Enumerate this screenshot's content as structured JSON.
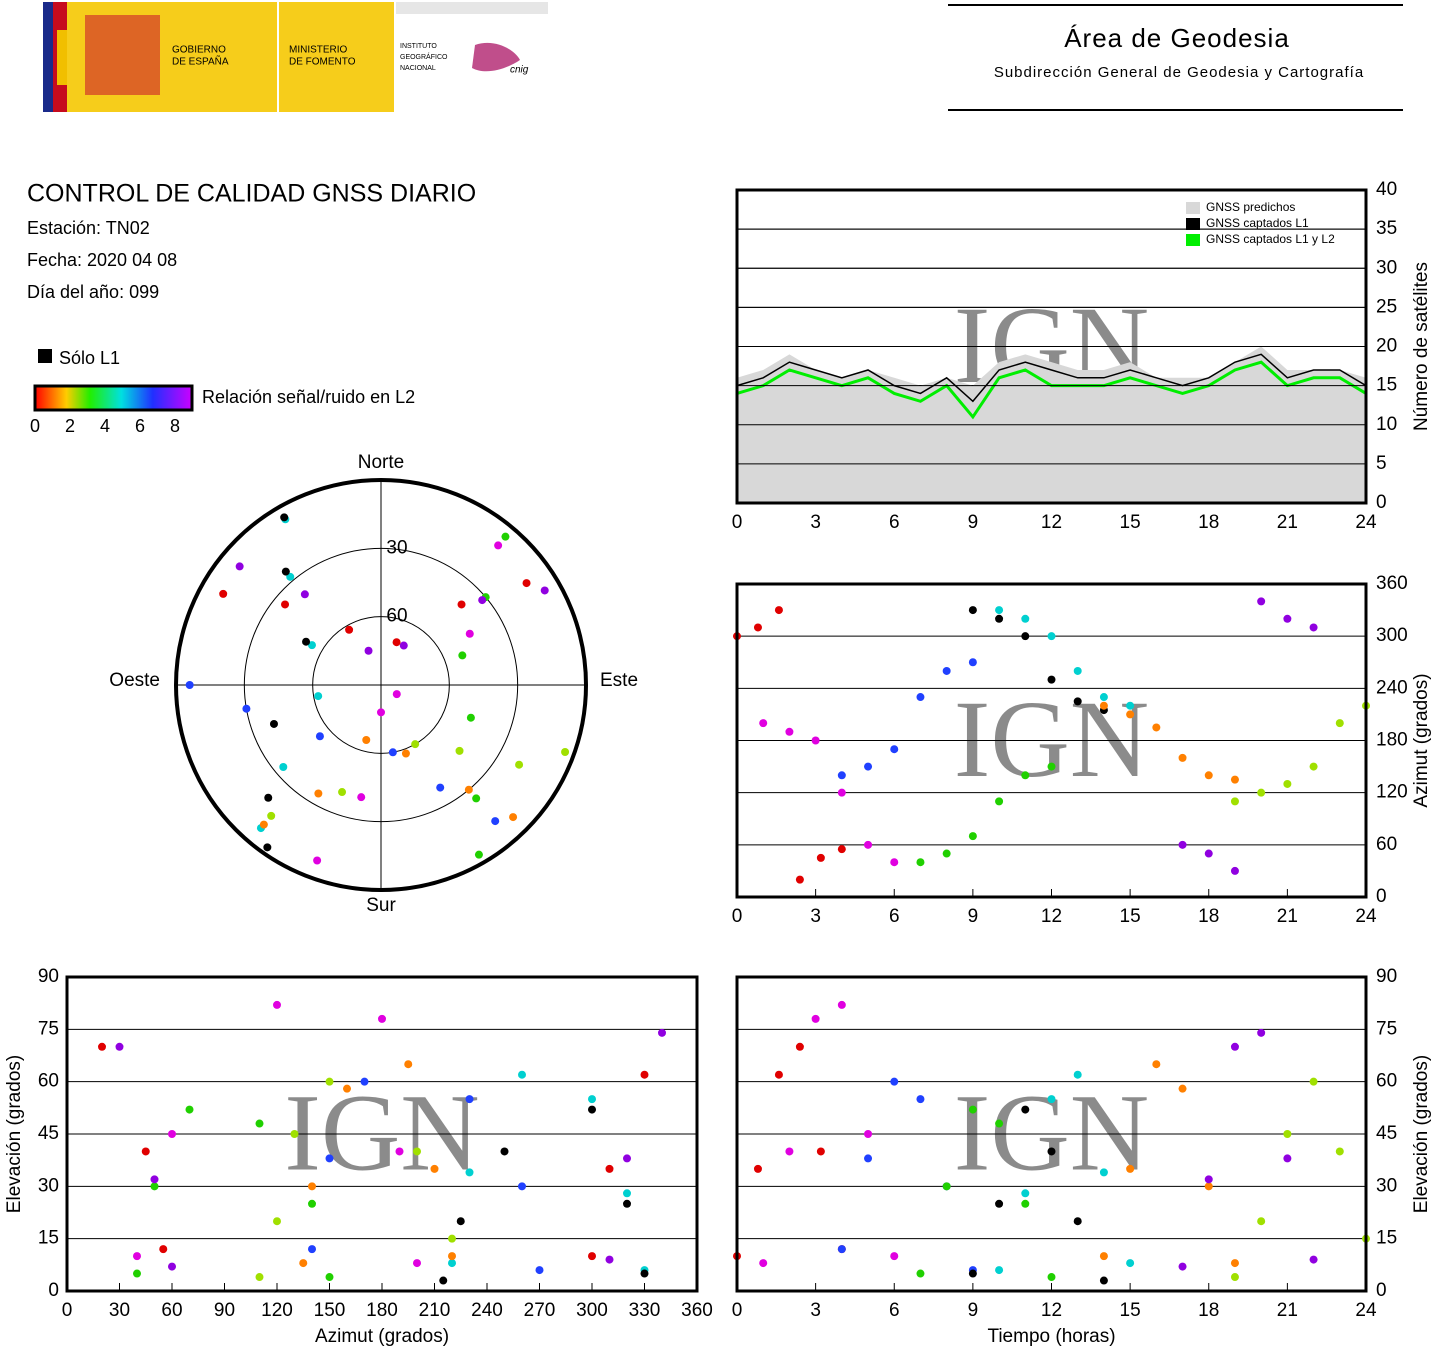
{
  "header": {
    "gov": [
      "GOBIERNO",
      "DE ESPAÑA"
    ],
    "ministry": [
      "MINISTERIO",
      "DE FOMENTO"
    ],
    "institute": [
      "INSTITUTO",
      "GEOGRÁFICO",
      "NACIONAL"
    ],
    "cnig": "cnig",
    "area": "Área de Geodesia",
    "subdir": "Subdirección General de Geodesia y Cartografía"
  },
  "report": {
    "title": "CONTROL DE CALIDAD GNSS DIARIO",
    "station": "Estación: TN02",
    "date": "Fecha: 2020 04 08",
    "doy": "Día del año: 099"
  },
  "legend": {
    "l1_only": "Sólo L1",
    "snr_label": "Relación señal/ruido en L2",
    "snr_ticks": [
      0,
      2,
      4,
      6,
      8
    ]
  },
  "chart_data": [
    {
      "type": "area",
      "watermark": "IGN",
      "y_label": "Número de satélites",
      "xlim": [
        0,
        24
      ],
      "ylim": [
        0,
        40
      ],
      "xticks": [
        0,
        3,
        6,
        9,
        12,
        15,
        18,
        21,
        24
      ],
      "yticks": [
        0,
        5,
        10,
        15,
        20,
        25,
        30,
        35,
        40
      ],
      "grid": true,
      "legend": "upper right",
      "x": [
        0,
        1,
        2,
        3,
        4,
        5,
        6,
        7,
        8,
        9,
        10,
        11,
        12,
        13,
        14,
        15,
        16,
        17,
        18,
        19,
        20,
        21,
        22,
        23,
        24
      ],
      "series": [
        {
          "name": "GNSS predichos",
          "color": "#d8d8d8",
          "fill": true,
          "values": [
            16,
            17,
            19,
            17,
            16,
            17,
            16,
            15,
            16,
            15,
            18,
            19,
            18,
            17,
            17,
            18,
            16,
            16,
            16,
            18,
            20,
            17,
            17,
            17,
            16
          ]
        },
        {
          "name": "GNSS captados L1",
          "color": "#000000",
          "values": [
            15,
            16,
            18,
            17,
            16,
            17,
            15,
            14,
            16,
            13,
            17,
            18,
            17,
            16,
            16,
            17,
            16,
            15,
            16,
            18,
            19,
            16,
            17,
            17,
            15
          ]
        },
        {
          "name": "GNSS captados L1 y L2",
          "color": "#00ee00",
          "values": [
            14,
            15,
            17,
            16,
            15,
            16,
            14,
            13,
            15,
            11,
            16,
            17,
            15,
            15,
            15,
            16,
            15,
            14,
            15,
            17,
            18,
            15,
            16,
            16,
            14
          ]
        }
      ]
    },
    {
      "type": "polar",
      "directions": [
        "Norte",
        "Este",
        "Sur",
        "Oeste"
      ],
      "rlim": [
        90,
        0
      ],
      "rticks": [
        30,
        60
      ],
      "series": [
        {
          "color": "#e00000",
          "x": [
            300,
            310,
            330,
            20,
            45,
            55
          ],
          "values": [
            10,
            35,
            62,
            70,
            40,
            12
          ]
        },
        {
          "color": "#e000e0",
          "x": [
            200,
            190,
            180,
            120,
            60,
            40
          ],
          "values": [
            8,
            40,
            78,
            82,
            45,
            10
          ]
        },
        {
          "color": "#2040ff",
          "x": [
            140,
            150,
            170,
            230,
            260,
            270
          ],
          "values": [
            12,
            38,
            60,
            55,
            30,
            6
          ]
        },
        {
          "color": "#20d000",
          "x": [
            40,
            50,
            70,
            110,
            140,
            150
          ],
          "values": [
            5,
            30,
            52,
            48,
            25,
            4
          ]
        },
        {
          "color": "#00d0d0",
          "x": [
            330,
            320,
            300,
            260,
            230,
            220
          ],
          "values": [
            6,
            28,
            55,
            62,
            34,
            8
          ]
        },
        {
          "color": "#000000",
          "x": [
            330,
            320,
            300,
            250,
            225,
            215
          ],
          "values": [
            5,
            25,
            52,
            40,
            20,
            3
          ]
        },
        {
          "color": "#ff8000",
          "x": [
            220,
            210,
            195,
            160,
            140,
            135
          ],
          "values": [
            10,
            35,
            65,
            58,
            30,
            8
          ]
        },
        {
          "color": "#9000e0",
          "x": [
            60,
            50,
            30,
            340,
            320,
            310
          ],
          "values": [
            7,
            32,
            70,
            74,
            38,
            9
          ]
        },
        {
          "color": "#a0e000",
          "x": [
            110,
            120,
            130,
            150,
            200,
            220
          ],
          "values": [
            4,
            20,
            45,
            60,
            40,
            15
          ]
        }
      ]
    },
    {
      "type": "scatter",
      "watermark": "IGN",
      "y_label": "Azimut (grados)",
      "xlim": [
        0,
        24
      ],
      "ylim": [
        0,
        360
      ],
      "xticks": [
        0,
        3,
        6,
        9,
        12,
        15,
        18,
        21,
        24
      ],
      "yticks": [
        0,
        60,
        120,
        180,
        240,
        300,
        360
      ],
      "grid": true,
      "series": [
        {
          "color": "#e00000",
          "x": [
            0,
            0.8,
            1.6,
            2.4,
            3.2,
            4
          ],
          "values": [
            300,
            310,
            330,
            20,
            45,
            55
          ]
        },
        {
          "color": "#e000e0",
          "x": [
            1,
            2,
            3,
            4,
            5,
            6
          ],
          "values": [
            200,
            190,
            180,
            120,
            60,
            40
          ]
        },
        {
          "color": "#2040ff",
          "x": [
            4,
            5,
            6,
            7,
            8,
            9
          ],
          "values": [
            140,
            150,
            170,
            230,
            260,
            270
          ]
        },
        {
          "color": "#20d000",
          "x": [
            7,
            8,
            9,
            10,
            11,
            12
          ],
          "values": [
            40,
            50,
            70,
            110,
            140,
            150
          ]
        },
        {
          "color": "#00d0d0",
          "x": [
            10,
            11,
            12,
            13,
            14,
            15
          ],
          "values": [
            330,
            320,
            300,
            260,
            230,
            220
          ]
        },
        {
          "color": "#000000",
          "x": [
            9,
            10,
            11,
            12,
            13,
            14
          ],
          "values": [
            330,
            320,
            300,
            250,
            225,
            215
          ]
        },
        {
          "color": "#ff8000",
          "x": [
            14,
            15,
            16,
            17,
            18,
            19
          ],
          "values": [
            220,
            210,
            195,
            160,
            140,
            135
          ]
        },
        {
          "color": "#9000e0",
          "x": [
            17,
            18,
            19,
            20,
            21,
            22
          ],
          "values": [
            60,
            50,
            30,
            340,
            320,
            310
          ]
        },
        {
          "color": "#a0e000",
          "x": [
            19,
            20,
            21,
            22,
            23,
            24
          ],
          "values": [
            110,
            120,
            130,
            150,
            200,
            220
          ]
        }
      ]
    },
    {
      "type": "scatter",
      "watermark": "IGN",
      "x_label": "Azimut (grados)",
      "y_label": "Elevación (grados)",
      "xlim": [
        0,
        360
      ],
      "ylim": [
        0,
        90
      ],
      "xticks": [
        0,
        30,
        60,
        90,
        120,
        150,
        180,
        210,
        240,
        270,
        300,
        330,
        360
      ],
      "yticks": [
        0,
        15,
        30,
        45,
        60,
        75,
        90
      ],
      "grid": true,
      "series": [
        {
          "color": "#e00000",
          "x": [
            300,
            310,
            330,
            20,
            45,
            55
          ],
          "values": [
            10,
            35,
            62,
            70,
            40,
            12
          ]
        },
        {
          "color": "#e000e0",
          "x": [
            200,
            190,
            180,
            120,
            60,
            40
          ],
          "values": [
            8,
            40,
            78,
            82,
            45,
            10
          ]
        },
        {
          "color": "#2040ff",
          "x": [
            140,
            150,
            170,
            230,
            260,
            270
          ],
          "values": [
            12,
            38,
            60,
            55,
            30,
            6
          ]
        },
        {
          "color": "#20d000",
          "x": [
            40,
            50,
            70,
            110,
            140,
            150
          ],
          "values": [
            5,
            30,
            52,
            48,
            25,
            4
          ]
        },
        {
          "color": "#00d0d0",
          "x": [
            330,
            320,
            300,
            260,
            230,
            220
          ],
          "values": [
            6,
            28,
            55,
            62,
            34,
            8
          ]
        },
        {
          "color": "#000000",
          "x": [
            330,
            320,
            300,
            250,
            225,
            215
          ],
          "values": [
            5,
            25,
            52,
            40,
            20,
            3
          ]
        },
        {
          "color": "#ff8000",
          "x": [
            220,
            210,
            195,
            160,
            140,
            135
          ],
          "values": [
            10,
            35,
            65,
            58,
            30,
            8
          ]
        },
        {
          "color": "#9000e0",
          "x": [
            60,
            50,
            30,
            340,
            320,
            310
          ],
          "values": [
            7,
            32,
            70,
            74,
            38,
            9
          ]
        },
        {
          "color": "#a0e000",
          "x": [
            110,
            120,
            130,
            150,
            200,
            220
          ],
          "values": [
            4,
            20,
            45,
            60,
            40,
            15
          ]
        }
      ]
    },
    {
      "type": "scatter",
      "watermark": "IGN",
      "x_label": "Tiempo (horas)",
      "y_label": "Elevación (grados)",
      "xlim": [
        0,
        24
      ],
      "ylim": [
        0,
        90
      ],
      "xticks": [
        0,
        3,
        6,
        9,
        12,
        15,
        18,
        21,
        24
      ],
      "yticks": [
        0,
        15,
        30,
        45,
        60,
        75,
        90
      ],
      "grid": true,
      "series": [
        {
          "color": "#e00000",
          "x": [
            0,
            0.8,
            1.6,
            2.4,
            3.2,
            4
          ],
          "values": [
            10,
            35,
            62,
            70,
            40,
            12
          ]
        },
        {
          "color": "#e000e0",
          "x": [
            1,
            2,
            3,
            4,
            5,
            6
          ],
          "values": [
            8,
            40,
            78,
            82,
            45,
            10
          ]
        },
        {
          "color": "#2040ff",
          "x": [
            4,
            5,
            6,
            7,
            8,
            9
          ],
          "values": [
            12,
            38,
            60,
            55,
            30,
            6
          ]
        },
        {
          "color": "#20d000",
          "x": [
            7,
            8,
            9,
            10,
            11,
            12
          ],
          "values": [
            5,
            30,
            52,
            48,
            25,
            4
          ]
        },
        {
          "color": "#00d0d0",
          "x": [
            10,
            11,
            12,
            13,
            14,
            15
          ],
          "values": [
            6,
            28,
            55,
            62,
            34,
            8
          ]
        },
        {
          "color": "#000000",
          "x": [
            9,
            10,
            11,
            12,
            13,
            14
          ],
          "values": [
            5,
            25,
            52,
            40,
            20,
            3
          ]
        },
        {
          "color": "#ff8000",
          "x": [
            14,
            15,
            16,
            17,
            18,
            19
          ],
          "values": [
            10,
            35,
            65,
            58,
            30,
            8
          ]
        },
        {
          "color": "#9000e0",
          "x": [
            17,
            18,
            19,
            20,
            21,
            22
          ],
          "values": [
            7,
            32,
            70,
            74,
            38,
            9
          ]
        },
        {
          "color": "#a0e000",
          "x": [
            19,
            20,
            21,
            22,
            23,
            24
          ],
          "values": [
            4,
            20,
            45,
            60,
            40,
            15
          ]
        }
      ]
    }
  ]
}
